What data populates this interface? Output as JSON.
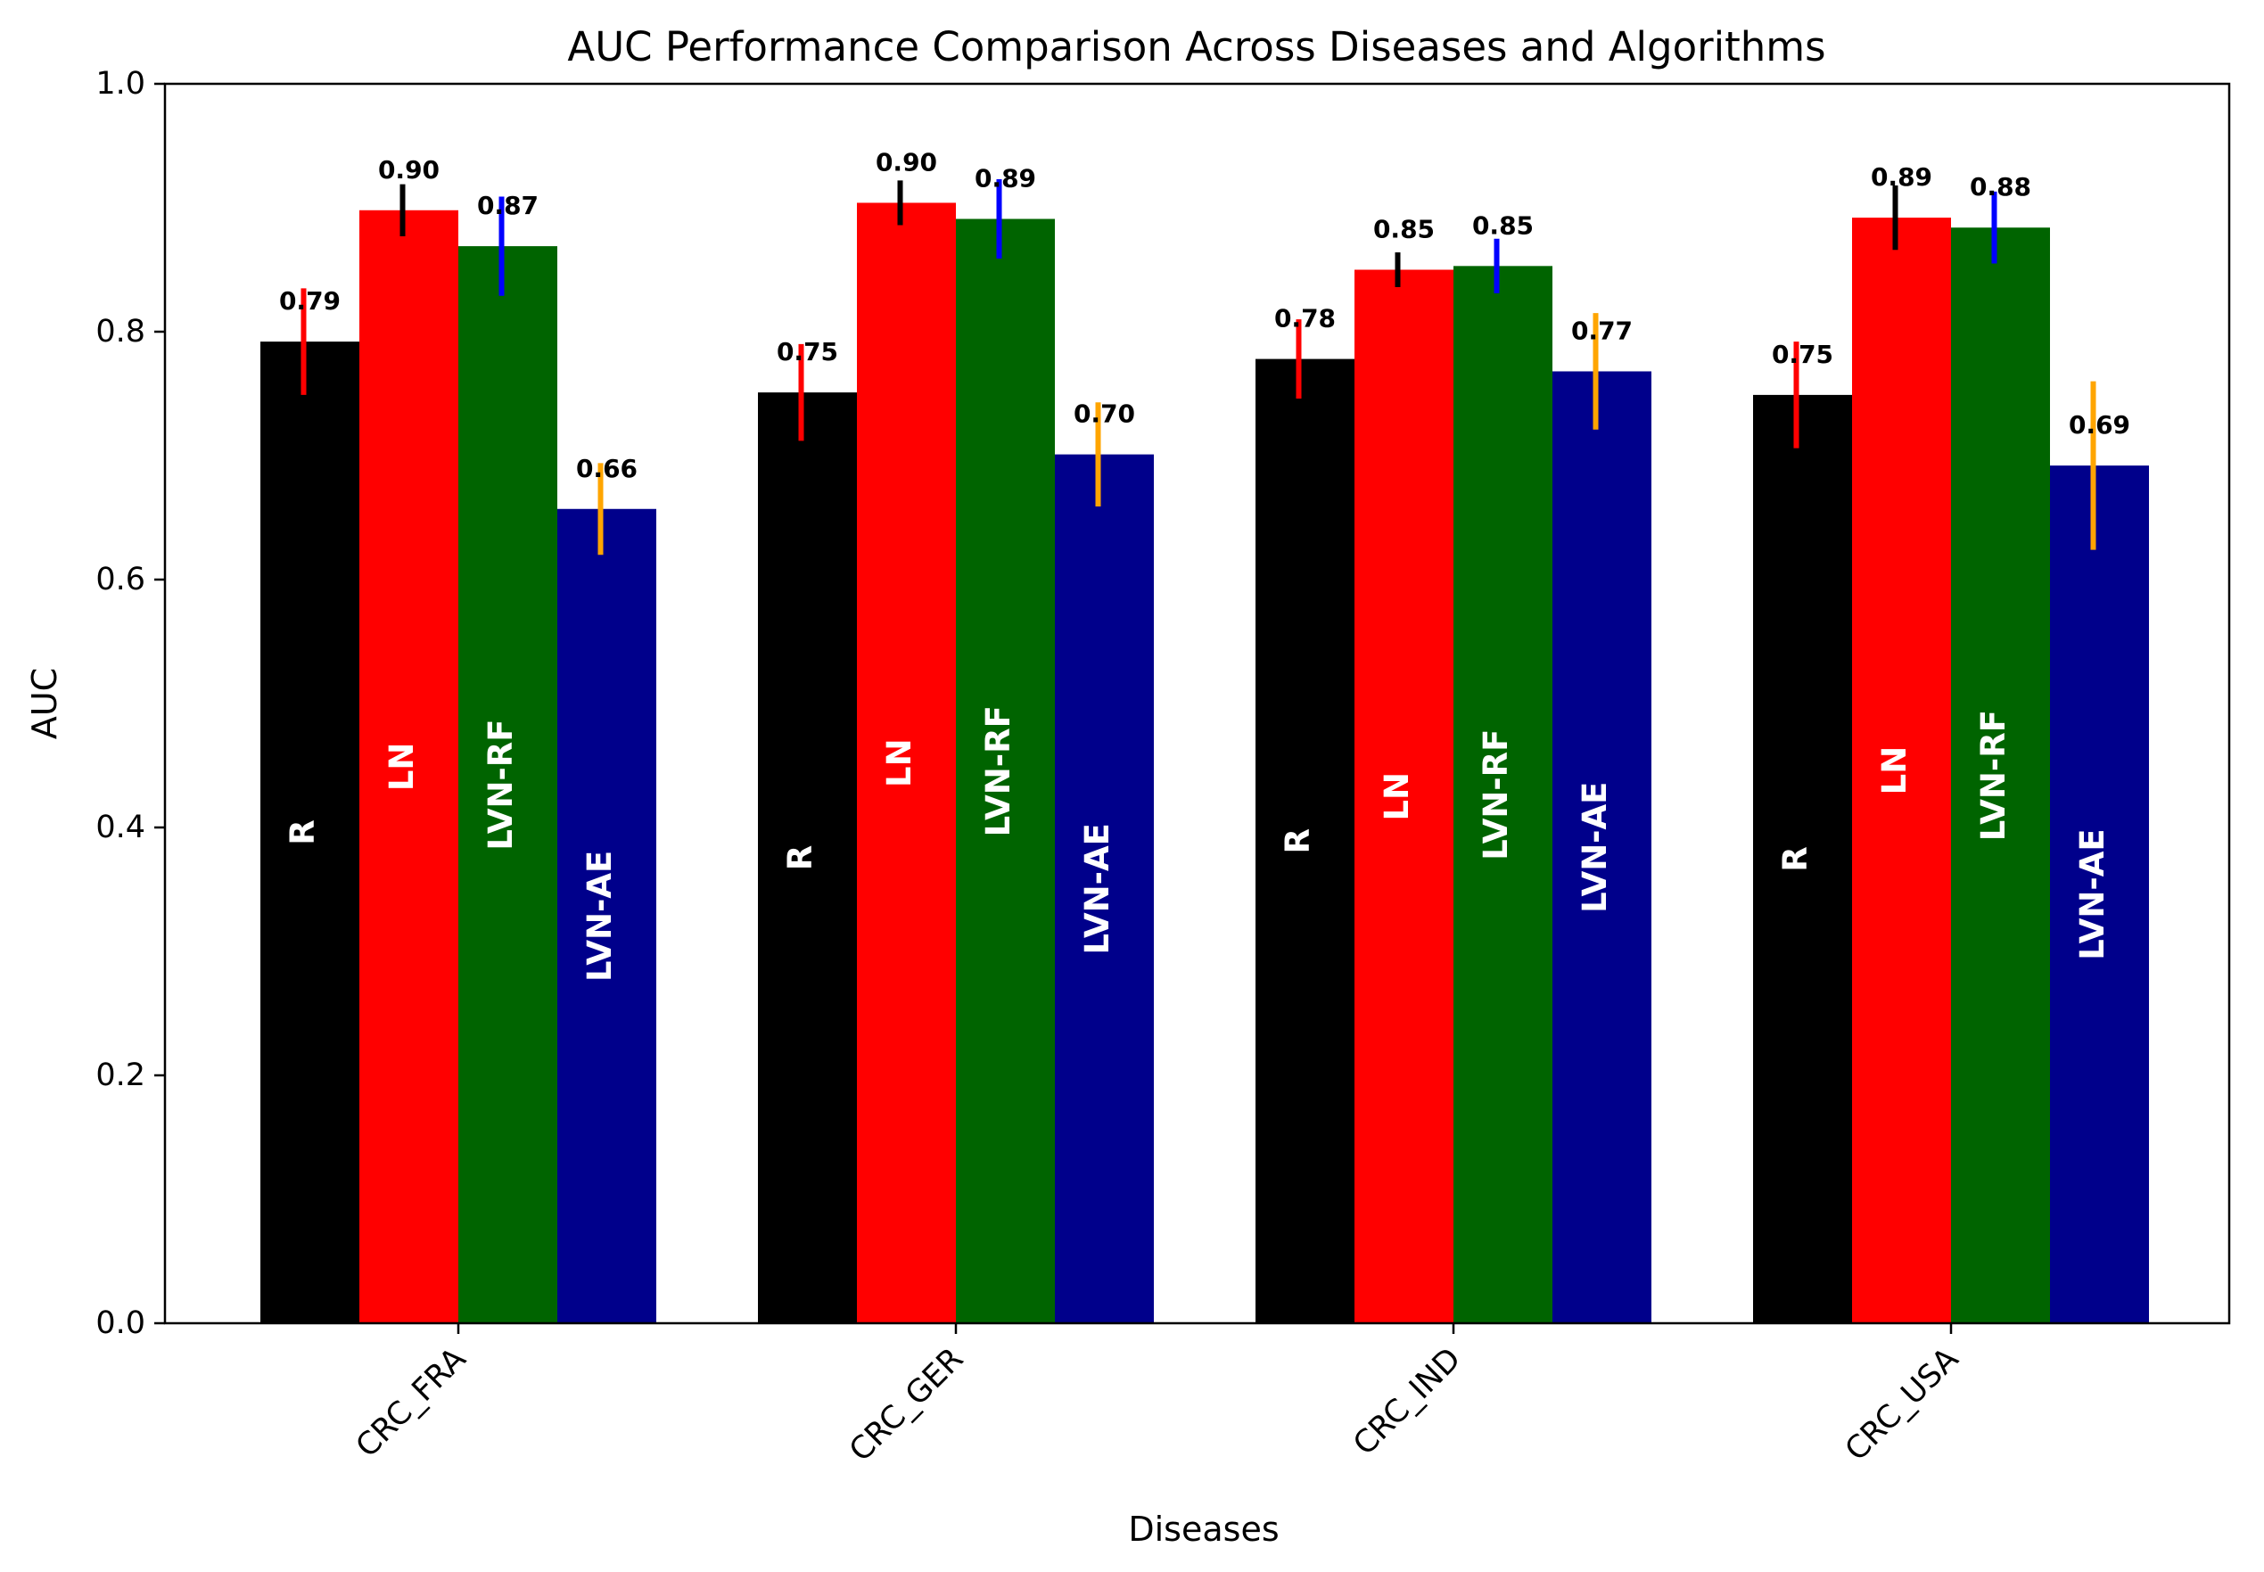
{
  "chart_data": {
    "type": "bar",
    "title": "AUC Performance Comparison Across Diseases and Algorithms",
    "xlabel": "Diseases",
    "ylabel": "AUC",
    "ylim": [
      0,
      1.0
    ],
    "yticks": [
      "0.0",
      "0.2",
      "0.4",
      "0.6",
      "0.8",
      "1.0"
    ],
    "categories": [
      "CRC_FRA",
      "CRC_GER",
      "CRC_IND",
      "CRC_USA"
    ],
    "grid": false,
    "legend": "none",
    "series": [
      {
        "name": "R",
        "color": "#000000",
        "error_color": "#ff0000",
        "values": [
          0.792,
          0.751,
          0.778,
          0.749
        ],
        "errors": [
          0.043,
          0.039,
          0.032,
          0.043
        ],
        "value_labels": [
          "0.79",
          "0.75",
          "0.78",
          "0.75"
        ]
      },
      {
        "name": "LN",
        "color": "#ff0000",
        "error_color": "#000000",
        "values": [
          0.898,
          0.904,
          0.85,
          0.892
        ],
        "errors": [
          0.021,
          0.018,
          0.014,
          0.026
        ],
        "value_labels": [
          "0.90",
          "0.90",
          "0.85",
          "0.89"
        ]
      },
      {
        "name": "LVN-RF",
        "color": "#006400",
        "error_color": "#0000ff",
        "values": [
          0.869,
          0.891,
          0.853,
          0.884
        ],
        "errors": [
          0.04,
          0.032,
          0.022,
          0.029
        ],
        "value_labels": [
          "0.87",
          "0.89",
          "0.85",
          "0.88"
        ]
      },
      {
        "name": "LVN-AE",
        "color": "#00008b",
        "error_color": "#ffa500",
        "values": [
          0.657,
          0.701,
          0.768,
          0.692
        ],
        "errors": [
          0.037,
          0.042,
          0.047,
          0.068
        ],
        "value_labels": [
          "0.66",
          "0.70",
          "0.77",
          "0.69"
        ]
      }
    ]
  }
}
